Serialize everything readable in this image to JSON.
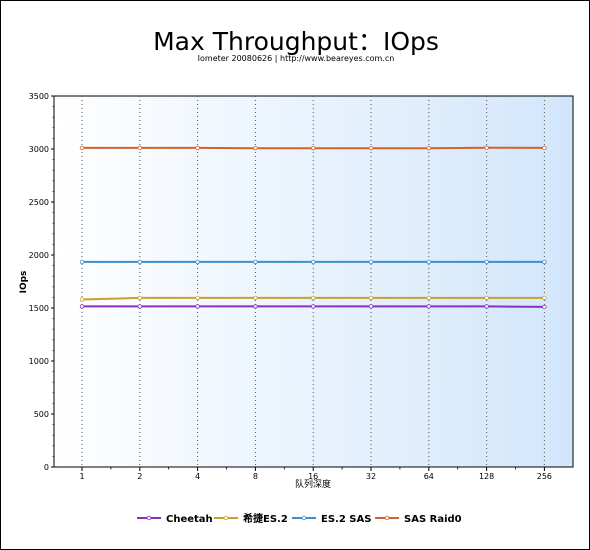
{
  "chart_data": {
    "type": "line",
    "title": "Max Throughput：IOps",
    "subtitle": "Iometer 20080626 | http://www.beareyes.com.cn",
    "xlabel": "队列深度",
    "ylabel": "IOps",
    "categories": [
      "1",
      "2",
      "4",
      "8",
      "16",
      "32",
      "64",
      "128",
      "256"
    ],
    "ylim": [
      0,
      3500
    ],
    "yticks": [
      0,
      500,
      1000,
      1500,
      2000,
      2500,
      3000,
      3500
    ],
    "grid": "vertical-dotted",
    "legend": "bottom",
    "series": [
      {
        "name": "Cheetah",
        "color": "#8a2fc4",
        "values": [
          1515,
          1515,
          1515,
          1515,
          1515,
          1515,
          1515,
          1515,
          1510
        ]
      },
      {
        "name": "希捷ES.2",
        "color": "#c8a02a",
        "values": [
          1580,
          1595,
          1595,
          1595,
          1595,
          1595,
          1595,
          1595,
          1595
        ]
      },
      {
        "name": "ES.2 SAS",
        "color": "#3a8fd0",
        "values": [
          1935,
          1935,
          1935,
          1935,
          1935,
          1935,
          1935,
          1935,
          1935
        ]
      },
      {
        "name": "SAS Raid0",
        "color": "#d4622e",
        "values": [
          3010,
          3010,
          3010,
          3008,
          3008,
          3008,
          3008,
          3012,
          3010
        ]
      }
    ]
  }
}
